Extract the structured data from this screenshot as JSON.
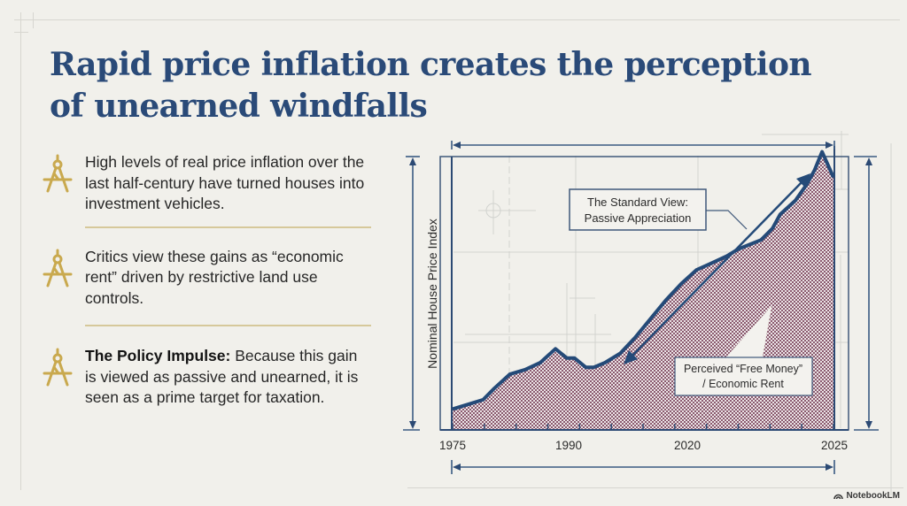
{
  "slide": {
    "title": "Rapid price inflation creates the perception of unearned windfalls",
    "bullets": [
      {
        "bold": "",
        "text": "High levels of real price inflation over the last half-century have turned houses into investment vehicles.",
        "icon": "compass-icon"
      },
      {
        "bold": "",
        "text": "Critics view these gains as “economic rent” driven by restrictive land use controls.",
        "icon": "compass-icon"
      },
      {
        "bold": "The Policy Impulse:",
        "text": " Because this gain is viewed as passive and unearned, it is seen as a prime target for taxation.",
        "icon": "compass-icon"
      }
    ],
    "watermark": "NotebookLM"
  },
  "colors": {
    "title": "#2a4a78",
    "navy": "#244a78",
    "gold": "#c9a94e",
    "fill_hatch": "#8a5a6e",
    "background": "#f1f0eb"
  },
  "chart_data": {
    "type": "area",
    "title": "",
    "xlabel": "",
    "ylabel": "Nominal House Price Index",
    "x_tick_labels": [
      "1975",
      "1990",
      "2020",
      "2025"
    ],
    "xlim": [
      0,
      1
    ],
    "ylim": [
      0,
      1
    ],
    "grid": false,
    "legend": "none",
    "series": [
      {
        "name": "Nominal House Price Index",
        "x": [
          0.0,
          0.04,
          0.08,
          0.11,
          0.15,
          0.19,
          0.23,
          0.27,
          0.3,
          0.32,
          0.35,
          0.37,
          0.4,
          0.44,
          0.48,
          0.52,
          0.56,
          0.6,
          0.64,
          0.68,
          0.72,
          0.75,
          0.78,
          0.81,
          0.84,
          0.86,
          0.88,
          0.9,
          0.93,
          0.95,
          0.97,
          1.0
        ],
        "values": [
          0.09,
          0.11,
          0.13,
          0.18,
          0.24,
          0.26,
          0.29,
          0.35,
          0.31,
          0.31,
          0.27,
          0.27,
          0.29,
          0.33,
          0.4,
          0.48,
          0.56,
          0.63,
          0.69,
          0.72,
          0.75,
          0.78,
          0.8,
          0.82,
          0.87,
          0.93,
          0.96,
          0.99,
          1.06,
          1.12,
          1.2,
          1.09
        ]
      }
    ],
    "annotations": [
      {
        "text_line1": "The Standard View:",
        "text_line2": "Passive Appreciation",
        "type": "double-arrow"
      },
      {
        "text_line1": "Perceived “Free Money”",
        "text_line2": "/ Economic Rent",
        "type": "callout"
      }
    ]
  }
}
